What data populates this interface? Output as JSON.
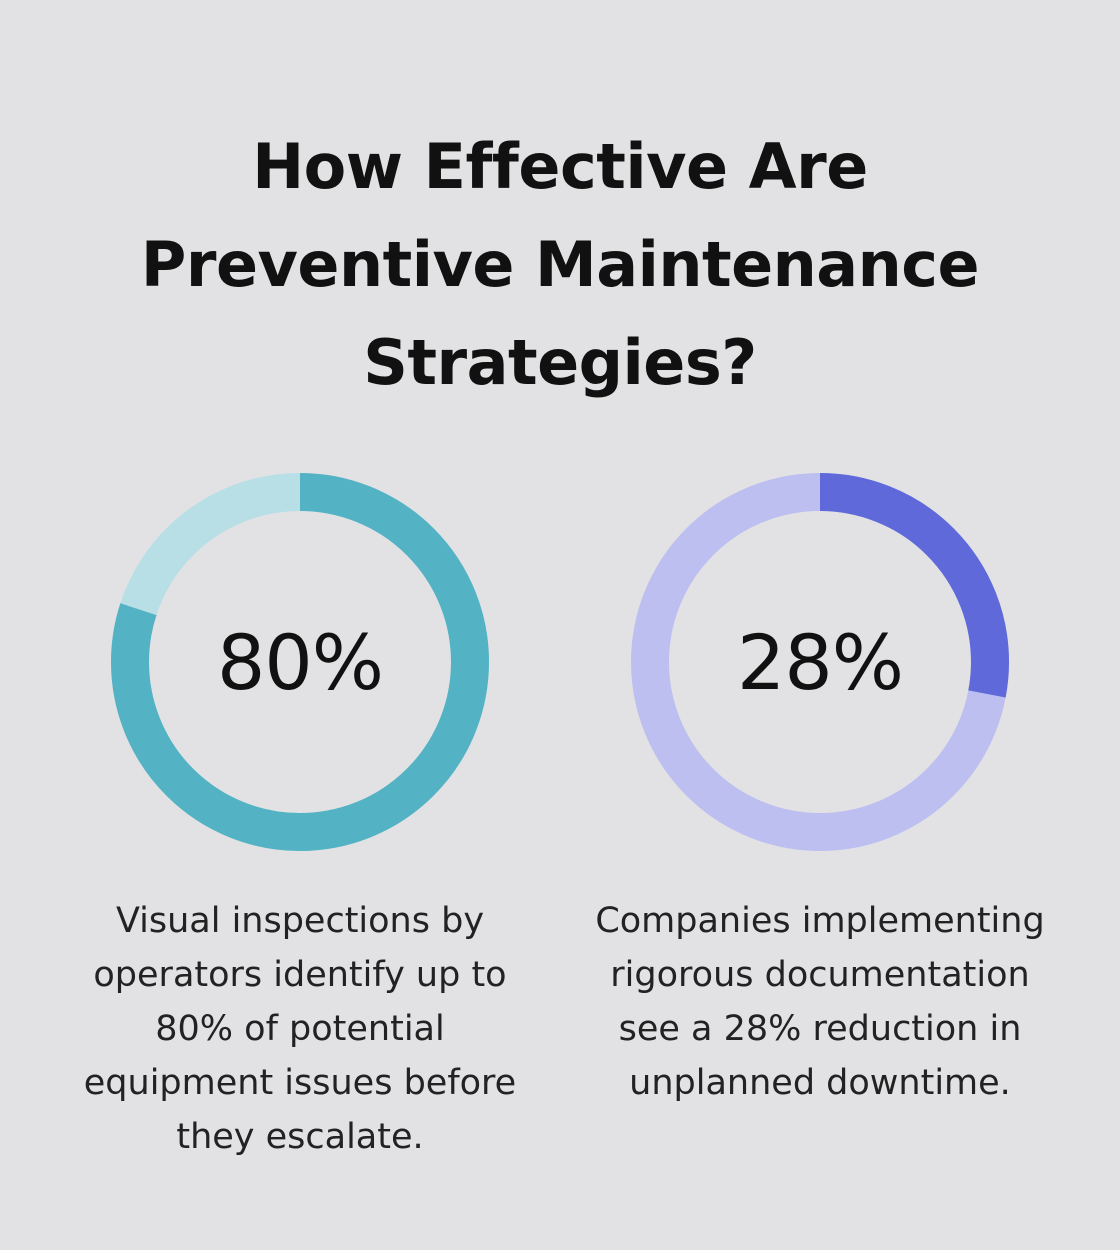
{
  "title_lines": [
    "How Effective Are",
    "Preventive Maintenance",
    "Strategies?"
  ],
  "colors": {
    "background": "#e2e2e4",
    "teal_fill": "#53b2c3",
    "teal_track": "#b8dfe6",
    "blue_fill": "#5f69d9",
    "blue_track": "#bcbff0"
  },
  "chart_data": [
    {
      "type": "pie",
      "style": "donut",
      "value": 80,
      "max": 100,
      "label": "80%",
      "caption_lines": [
        "Visual inspections by",
        "operators identify up to",
        "80% of potential",
        "equipment issues before",
        "they escalate."
      ],
      "fill_color": "#53b2c3",
      "track_color": "#b8dfe6"
    },
    {
      "type": "pie",
      "style": "donut",
      "value": 28,
      "max": 100,
      "label": "28%",
      "caption_lines": [
        "Companies implementing",
        "rigorous documentation",
        "see a 28% reduction in",
        "unplanned downtime."
      ],
      "fill_color": "#5f69d9",
      "track_color": "#bcbff0"
    }
  ]
}
